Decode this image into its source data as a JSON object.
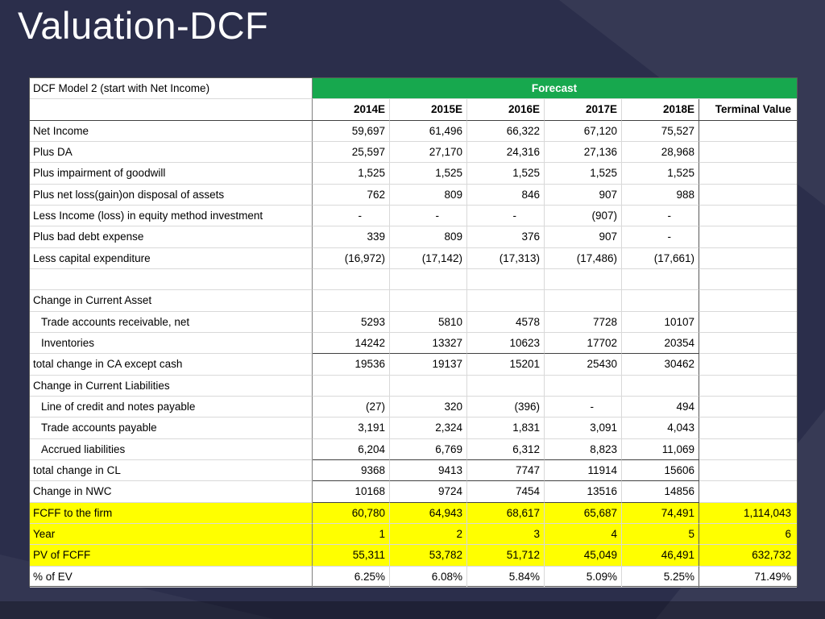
{
  "slide": {
    "title": "Valuation-DCF"
  },
  "colors": {
    "slide_bg": "#2b2e4b",
    "forecast_green": "#17a84e",
    "highlight_yellow": "#ffff00",
    "title_text": "#ffffff"
  },
  "table": {
    "model_label": "DCF Model 2 (start with Net Income)",
    "forecast_label": "Forecast",
    "terminal_label": "Terminal Value",
    "columns": [
      "2014E",
      "2015E",
      "2016E",
      "2017E",
      "2018E"
    ],
    "rows": [
      {
        "label": "Net Income",
        "values": [
          "59,697",
          "61,496",
          "66,322",
          "67,120",
          "75,527"
        ],
        "terminal": ""
      },
      {
        "label": "Plus DA",
        "values": [
          "25,597",
          "27,170",
          "24,316",
          "27,136",
          "28,968"
        ],
        "terminal": ""
      },
      {
        "label": "Plus impairment of goodwill",
        "values": [
          "1,525",
          "1,525",
          "1,525",
          "1,525",
          "1,525"
        ],
        "terminal": ""
      },
      {
        "label": "Plus net loss(gain)on disposal of assets",
        "values": [
          "762",
          "809",
          "846",
          "907",
          "988"
        ],
        "terminal": ""
      },
      {
        "label": "Less Income (loss) in equity method investment",
        "values": [
          "-",
          "-",
          "-",
          "(907)",
          "-"
        ],
        "terminal": ""
      },
      {
        "label": "Plus bad debt expense",
        "values": [
          "339",
          "809",
          "376",
          "907",
          "-"
        ],
        "terminal": ""
      },
      {
        "label": "Less capital expenditure",
        "values": [
          "(16,972)",
          "(17,142)",
          "(17,313)",
          "(17,486)",
          "(17,661)"
        ],
        "terminal": ""
      },
      {
        "label": "",
        "values": [
          "",
          "",
          "",
          "",
          ""
        ],
        "terminal": ""
      },
      {
        "label": "Change in Current Asset",
        "values": [
          "",
          "",
          "",
          "",
          ""
        ],
        "terminal": ""
      },
      {
        "label": "Trade accounts receivable, net",
        "values": [
          "5293",
          "5810",
          "4578",
          "7728",
          "10107"
        ],
        "terminal": "",
        "indent": true
      },
      {
        "label": "Inventories",
        "values": [
          "14242",
          "13327",
          "10623",
          "17702",
          "20354"
        ],
        "terminal": "",
        "indent": true,
        "underline": true
      },
      {
        "label": "total change in CA except cash",
        "values": [
          "19536",
          "19137",
          "15201",
          "25430",
          "30462"
        ],
        "terminal": ""
      },
      {
        "label": "Change in Current Liabilities",
        "values": [
          "",
          "",
          "",
          "",
          ""
        ],
        "terminal": ""
      },
      {
        "label": "Line of credit and notes payable",
        "values": [
          "(27)",
          "320",
          "(396)",
          "-",
          "494"
        ],
        "terminal": "",
        "indent": true
      },
      {
        "label": "Trade accounts payable",
        "values": [
          "3,191",
          "2,324",
          "1,831",
          "3,091",
          "4,043"
        ],
        "terminal": "",
        "indent": true
      },
      {
        "label": "Accrued liabilities",
        "values": [
          "6,204",
          "6,769",
          "6,312",
          "8,823",
          "11,069"
        ],
        "terminal": "",
        "indent": true,
        "underline": true
      },
      {
        "label": "total change in CL",
        "values": [
          "9368",
          "9413",
          "7747",
          "11914",
          "15606"
        ],
        "terminal": "",
        "underline": true
      },
      {
        "label": "Change in NWC",
        "values": [
          "10168",
          "9724",
          "7454",
          "13516",
          "14856"
        ],
        "terminal": "",
        "underline": true
      },
      {
        "label": "FCFF to the firm",
        "values": [
          "60,780",
          "64,943",
          "68,617",
          "65,687",
          "74,491"
        ],
        "terminal": "1,114,043",
        "yellow": true
      },
      {
        "label": "Year",
        "values": [
          "1",
          "2",
          "3",
          "4",
          "5"
        ],
        "terminal": "6",
        "yellow": true
      },
      {
        "label": "PV of FCFF",
        "values": [
          "55,311",
          "53,782",
          "51,712",
          "45,049",
          "46,491"
        ],
        "terminal": "632,732",
        "yellow": true
      },
      {
        "label": "% of EV",
        "values": [
          "6.25%",
          "6.08%",
          "5.84%",
          "5.09%",
          "5.25%"
        ],
        "terminal": "71.49%"
      }
    ]
  }
}
